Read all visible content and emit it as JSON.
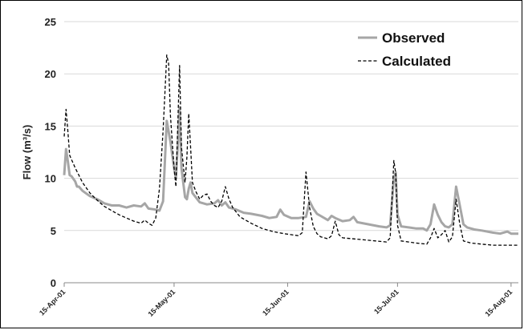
{
  "chart_data": {
    "type": "line",
    "xlabel": "",
    "ylabel": "Flow (m³/s)",
    "ylim": [
      0,
      25
    ],
    "yticks": [
      0,
      5,
      10,
      15,
      20,
      25
    ],
    "x_start": "2001-04-15",
    "x_end": "2001-08-17",
    "xticks": [
      {
        "date": "2001-04-15",
        "label": "15-Apr-01"
      },
      {
        "date": "2001-05-15",
        "label": "15-May-01"
      },
      {
        "date": "2001-06-15",
        "label": "15-Jun-01"
      },
      {
        "date": "2001-07-15",
        "label": "15-Jul-01"
      },
      {
        "date": "2001-08-15",
        "label": "15-Aug-01"
      }
    ],
    "grid": "horizontal",
    "legend": "top-right",
    "series": [
      {
        "name": "Observed",
        "color": "#a6a6a6",
        "style": "solid",
        "points": [
          [
            "2001-04-15",
            10.3
          ],
          [
            "2001-04-15T12",
            12.8
          ],
          [
            "2001-04-16",
            11.6
          ],
          [
            "2001-04-16T12",
            10.3
          ],
          [
            "2001-04-17",
            10.2
          ],
          [
            "2001-04-18",
            9.7
          ],
          [
            "2001-04-18T12",
            9.2
          ],
          [
            "2001-04-19",
            9.2
          ],
          [
            "2001-04-20",
            8.8
          ],
          [
            "2001-04-22",
            8.3
          ],
          [
            "2001-04-24",
            8.0
          ],
          [
            "2001-04-26",
            7.6
          ],
          [
            "2001-04-28",
            7.4
          ],
          [
            "2001-04-30",
            7.4
          ],
          [
            "2001-05-02",
            7.2
          ],
          [
            "2001-05-04",
            7.4
          ],
          [
            "2001-05-06",
            7.3
          ],
          [
            "2001-05-07",
            7.6
          ],
          [
            "2001-05-08",
            7.1
          ],
          [
            "2001-05-10",
            7.0
          ],
          [
            "2001-05-11",
            6.9
          ],
          [
            "2001-05-12",
            7.8
          ],
          [
            "2001-05-13",
            15.5
          ],
          [
            "2001-05-14",
            13.5
          ],
          [
            "2001-05-15",
            11.0
          ],
          [
            "2001-05-15T12",
            10.0
          ],
          [
            "2001-05-16",
            13.0
          ],
          [
            "2001-05-16T12",
            16.8
          ],
          [
            "2001-05-17",
            11.0
          ],
          [
            "2001-05-18",
            8.2
          ],
          [
            "2001-05-18T12",
            8.0
          ],
          [
            "2001-05-19",
            9.0
          ],
          [
            "2001-05-19T12",
            9.6
          ],
          [
            "2001-05-20",
            8.6
          ],
          [
            "2001-05-22",
            7.7
          ],
          [
            "2001-05-24",
            7.5
          ],
          [
            "2001-05-26",
            7.6
          ],
          [
            "2001-05-27",
            7.9
          ],
          [
            "2001-05-28",
            7.4
          ],
          [
            "2001-05-29",
            7.7
          ],
          [
            "2001-05-30",
            7.2
          ],
          [
            "2001-06-01",
            7.0
          ],
          [
            "2001-06-03",
            6.7
          ],
          [
            "2001-06-05",
            6.6
          ],
          [
            "2001-06-08",
            6.4
          ],
          [
            "2001-06-10",
            6.2
          ],
          [
            "2001-06-12",
            6.3
          ],
          [
            "2001-06-13",
            7.0
          ],
          [
            "2001-06-14",
            6.5
          ],
          [
            "2001-06-16",
            6.2
          ],
          [
            "2001-06-18",
            6.2
          ],
          [
            "2001-06-20",
            6.3
          ],
          [
            "2001-06-21",
            7.8
          ],
          [
            "2001-06-22",
            7.1
          ],
          [
            "2001-06-23",
            6.6
          ],
          [
            "2001-06-24",
            6.4
          ],
          [
            "2001-06-26",
            6.0
          ],
          [
            "2001-06-27",
            6.4
          ],
          [
            "2001-06-28",
            6.2
          ],
          [
            "2001-06-30",
            5.9
          ],
          [
            "2001-07-02",
            6.0
          ],
          [
            "2001-07-03",
            6.3
          ],
          [
            "2001-07-04",
            5.8
          ],
          [
            "2001-07-07",
            5.6
          ],
          [
            "2001-07-10",
            5.4
          ],
          [
            "2001-07-12",
            5.3
          ],
          [
            "2001-07-13",
            5.5
          ],
          [
            "2001-07-14",
            10.0
          ],
          [
            "2001-07-14T12",
            10.6
          ],
          [
            "2001-07-15",
            6.5
          ],
          [
            "2001-07-16",
            5.4
          ],
          [
            "2001-07-18",
            5.3
          ],
          [
            "2001-07-20",
            5.2
          ],
          [
            "2001-07-22",
            5.2
          ],
          [
            "2001-07-23",
            5.0
          ],
          [
            "2001-07-24",
            5.6
          ],
          [
            "2001-07-25",
            7.5
          ],
          [
            "2001-07-26",
            6.5
          ],
          [
            "2001-07-27",
            5.8
          ],
          [
            "2001-07-28",
            5.4
          ],
          [
            "2001-07-29",
            5.3
          ],
          [
            "2001-07-30",
            5.6
          ],
          [
            "2001-07-31",
            9.2
          ],
          [
            "2001-08-01",
            7.4
          ],
          [
            "2001-08-02",
            5.6
          ],
          [
            "2001-08-03",
            5.3
          ],
          [
            "2001-08-05",
            5.1
          ],
          [
            "2001-08-07",
            5.0
          ],
          [
            "2001-08-10",
            4.8
          ],
          [
            "2001-08-12",
            4.7
          ],
          [
            "2001-08-14",
            4.9
          ],
          [
            "2001-08-15",
            4.7
          ],
          [
            "2001-08-17",
            4.7
          ]
        ]
      },
      {
        "name": "Calculated",
        "color": "#000000",
        "style": "dashed",
        "points": [
          [
            "2001-04-15",
            14.0
          ],
          [
            "2001-04-15T12",
            16.6
          ],
          [
            "2001-04-16",
            14.5
          ],
          [
            "2001-04-16T12",
            12.2
          ],
          [
            "2001-04-18",
            11.0
          ],
          [
            "2001-04-20",
            9.6
          ],
          [
            "2001-04-22",
            8.6
          ],
          [
            "2001-04-24",
            7.9
          ],
          [
            "2001-04-26",
            7.3
          ],
          [
            "2001-04-28",
            6.9
          ],
          [
            "2001-04-30",
            6.5
          ],
          [
            "2001-05-02",
            6.2
          ],
          [
            "2001-05-04",
            5.9
          ],
          [
            "2001-05-06",
            5.7
          ],
          [
            "2001-05-07",
            6.0
          ],
          [
            "2001-05-08",
            5.7
          ],
          [
            "2001-05-09",
            5.5
          ],
          [
            "2001-05-10",
            6.2
          ],
          [
            "2001-05-11",
            9.0
          ],
          [
            "2001-05-12",
            14.5
          ],
          [
            "2001-05-13",
            21.8
          ],
          [
            "2001-05-13T12",
            21.0
          ],
          [
            "2001-05-14",
            16.0
          ],
          [
            "2001-05-15",
            11.0
          ],
          [
            "2001-05-15T12",
            9.2
          ],
          [
            "2001-05-16",
            15.0
          ],
          [
            "2001-05-16T12",
            20.8
          ],
          [
            "2001-05-17",
            13.0
          ],
          [
            "2001-05-18",
            9.6
          ],
          [
            "2001-05-18T12",
            12.0
          ],
          [
            "2001-05-19",
            16.2
          ],
          [
            "2001-05-19T12",
            13.0
          ],
          [
            "2001-05-20",
            9.6
          ],
          [
            "2001-05-21",
            8.7
          ],
          [
            "2001-05-22",
            8.0
          ],
          [
            "2001-05-23",
            8.4
          ],
          [
            "2001-05-24",
            8.5
          ],
          [
            "2001-05-25",
            7.8
          ],
          [
            "2001-05-26",
            7.4
          ],
          [
            "2001-05-27",
            7.2
          ],
          [
            "2001-05-28",
            7.8
          ],
          [
            "2001-05-29",
            9.2
          ],
          [
            "2001-05-30",
            8.0
          ],
          [
            "2001-05-31",
            7.2
          ],
          [
            "2001-06-02",
            6.3
          ],
          [
            "2001-06-05",
            5.7
          ],
          [
            "2001-06-08",
            5.2
          ],
          [
            "2001-06-11",
            4.9
          ],
          [
            "2001-06-14",
            4.7
          ],
          [
            "2001-06-18",
            4.5
          ],
          [
            "2001-06-19",
            4.8
          ],
          [
            "2001-06-20",
            10.6
          ],
          [
            "2001-06-21",
            7.2
          ],
          [
            "2001-06-22",
            5.4
          ],
          [
            "2001-06-23",
            4.7
          ],
          [
            "2001-06-24",
            4.4
          ],
          [
            "2001-06-26",
            4.2
          ],
          [
            "2001-06-27",
            4.5
          ],
          [
            "2001-06-28",
            5.9
          ],
          [
            "2001-06-29",
            4.6
          ],
          [
            "2001-06-30",
            4.3
          ],
          [
            "2001-07-03",
            4.2
          ],
          [
            "2001-07-06",
            4.1
          ],
          [
            "2001-07-09",
            4.0
          ],
          [
            "2001-07-12",
            3.9
          ],
          [
            "2001-07-13",
            4.3
          ],
          [
            "2001-07-14",
            11.7
          ],
          [
            "2001-07-14T12",
            10.5
          ],
          [
            "2001-07-15",
            5.5
          ],
          [
            "2001-07-16",
            4.0
          ],
          [
            "2001-07-18",
            3.9
          ],
          [
            "2001-07-20",
            3.8
          ],
          [
            "2001-07-23",
            3.7
          ],
          [
            "2001-07-24",
            4.3
          ],
          [
            "2001-07-25",
            5.2
          ],
          [
            "2001-07-26",
            4.3
          ],
          [
            "2001-07-27",
            4.6
          ],
          [
            "2001-07-28",
            5.0
          ],
          [
            "2001-07-29",
            3.9
          ],
          [
            "2001-07-30",
            4.4
          ],
          [
            "2001-07-31",
            8.0
          ],
          [
            "2001-08-01",
            5.6
          ],
          [
            "2001-08-02",
            4.0
          ],
          [
            "2001-08-04",
            3.8
          ],
          [
            "2001-08-07",
            3.7
          ],
          [
            "2001-08-10",
            3.6
          ],
          [
            "2001-08-13",
            3.6
          ],
          [
            "2001-08-17",
            3.6
          ]
        ]
      }
    ]
  }
}
